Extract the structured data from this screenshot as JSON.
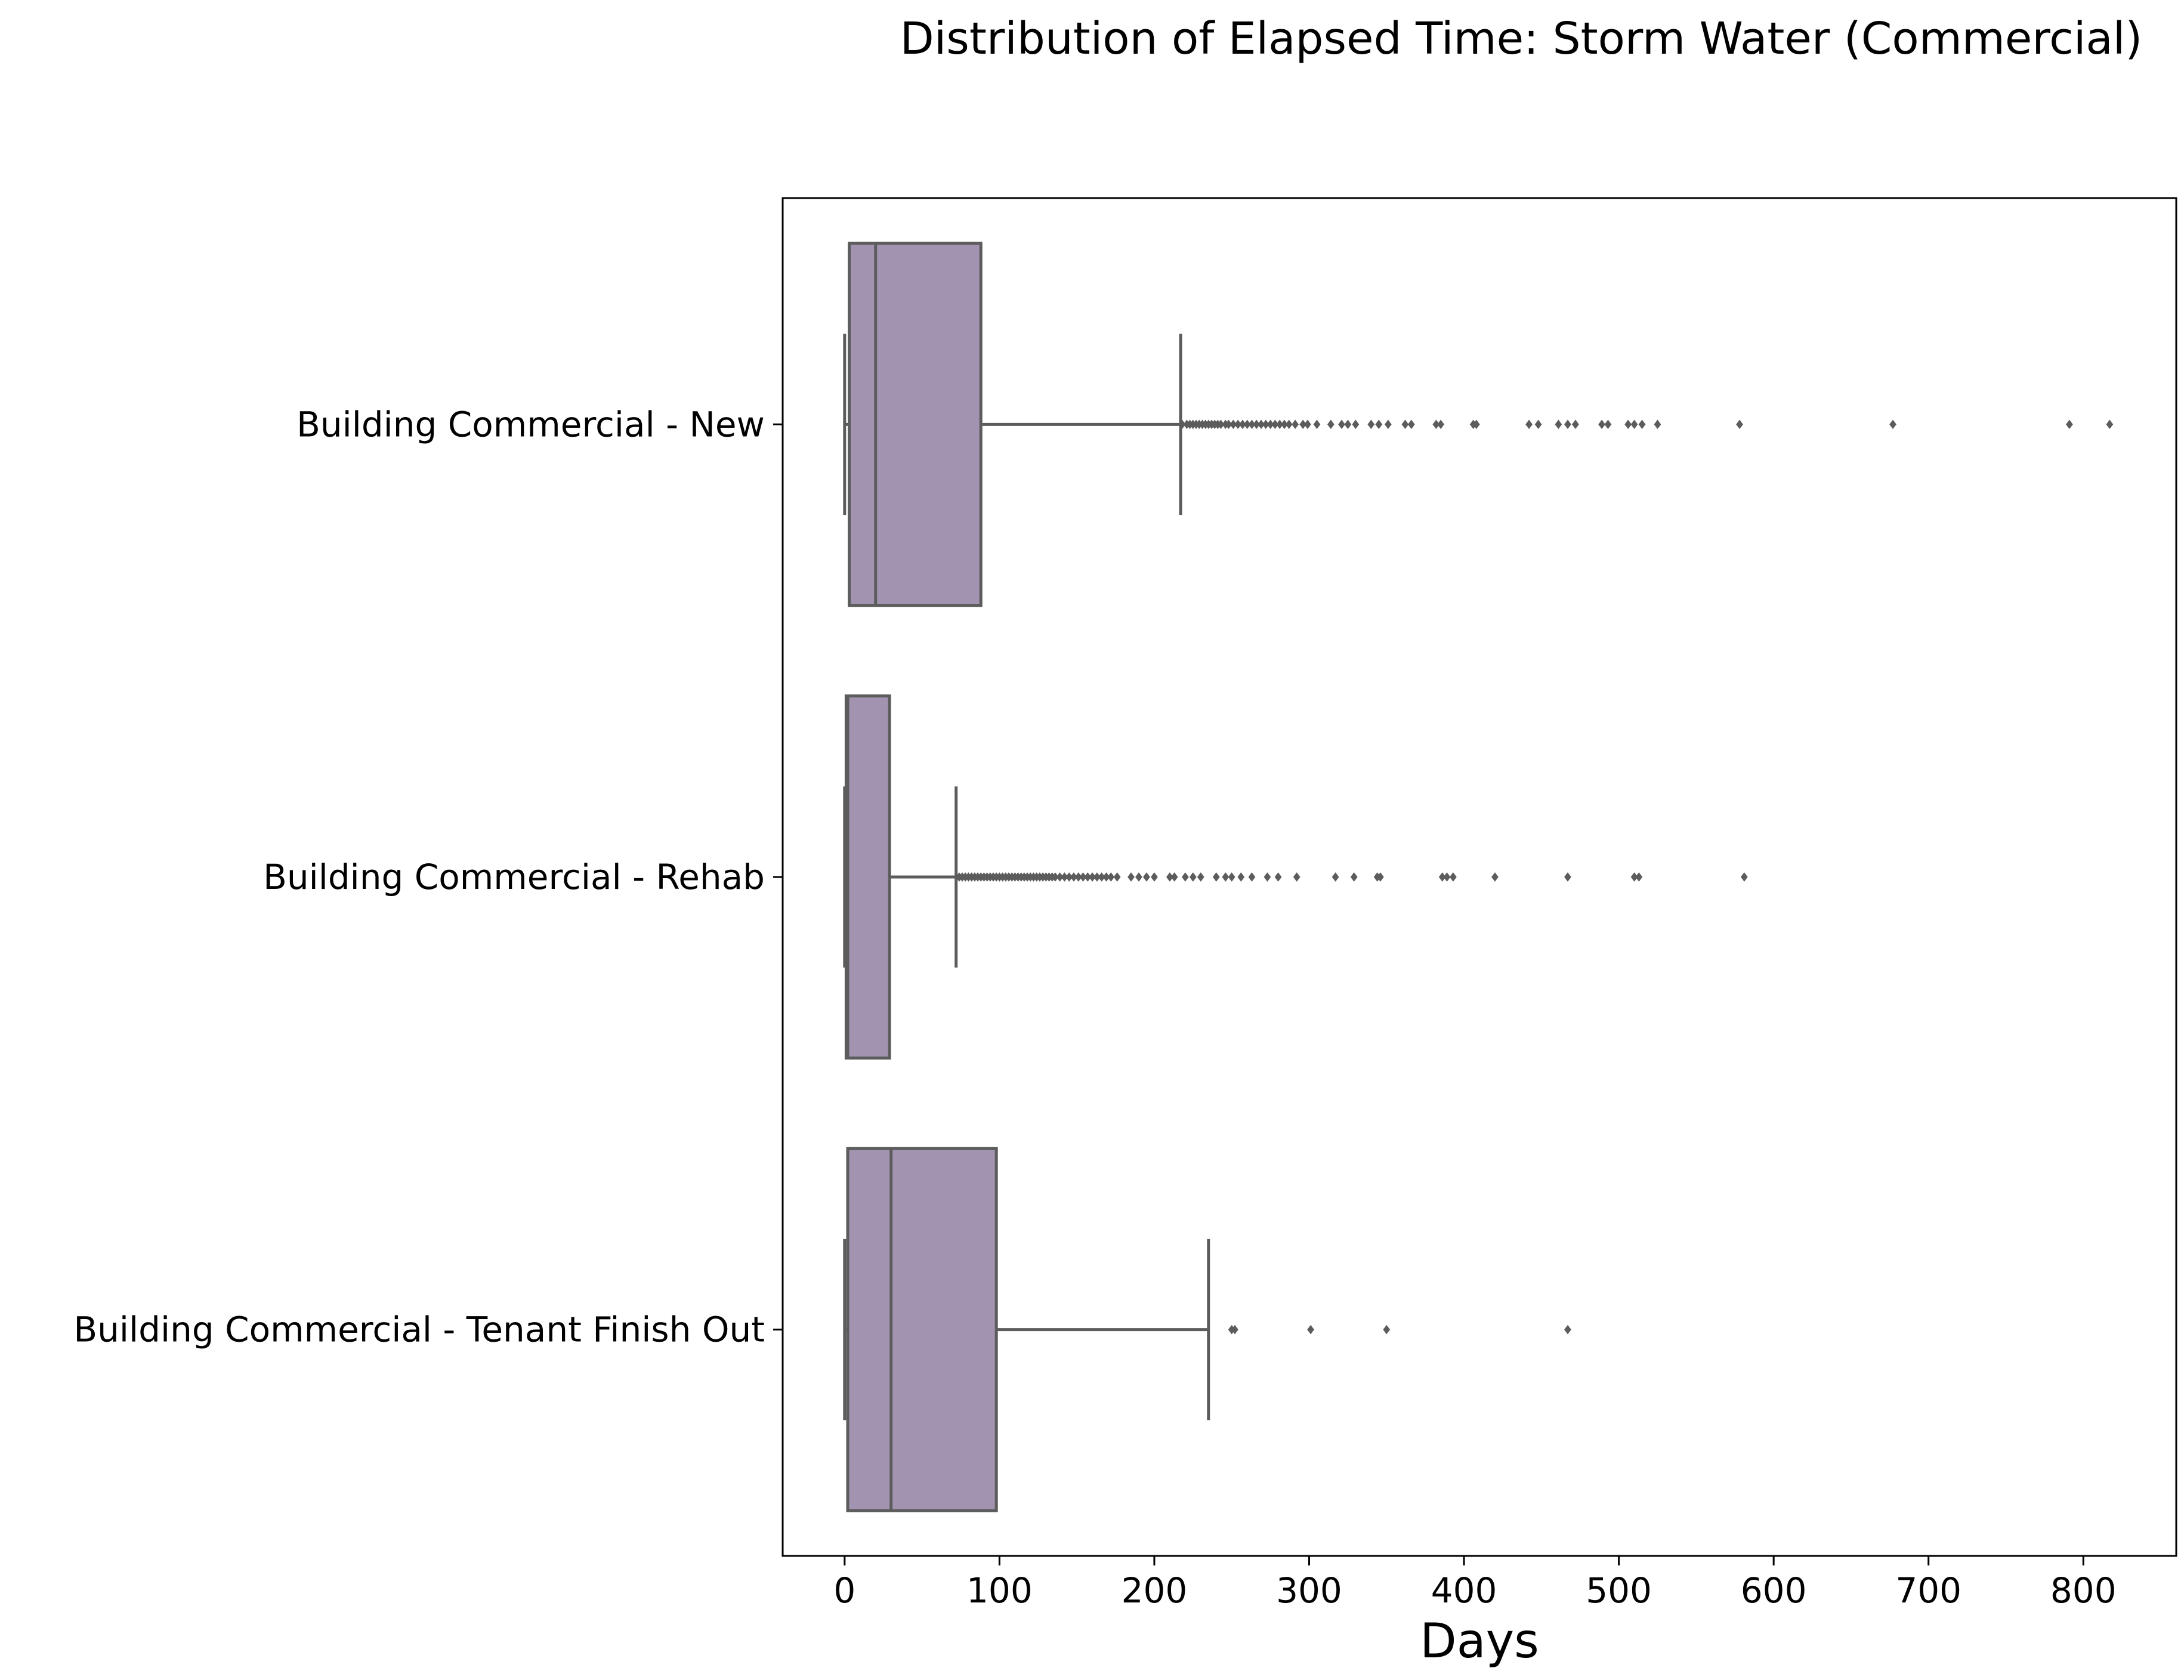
{
  "chart_data": {
    "type": "box",
    "orientation": "horizontal",
    "title": "Distribution of Elapsed Time: Storm Water (Commercial)",
    "xlabel": "Days",
    "ylabel": "",
    "xlim": [
      -40,
      860
    ],
    "xticks": [
      0,
      100,
      200,
      300,
      400,
      500,
      600,
      700,
      800
    ],
    "xtick_labels": [
      "0",
      "100",
      "200",
      "300",
      "400",
      "500",
      "600",
      "700",
      "800"
    ],
    "grid": false,
    "box_color": "#a294b0",
    "line_color": "#5c5c5c",
    "categories": [
      "Building Commercial - New",
      "Building Commercial - Rehab",
      "Building Commercial - Tenant Finish Out"
    ],
    "boxes": [
      {
        "label": "Building Commercial - New",
        "whisker_low": 0,
        "q1": 3,
        "median": 20,
        "q3": 88,
        "whisker_high": 217,
        "outliers": [
          218,
          221,
          223,
          225,
          227,
          229,
          231,
          233,
          235,
          237,
          239,
          241,
          243,
          246,
          248,
          251,
          254,
          257,
          260,
          263,
          266,
          269,
          272,
          275,
          278,
          281,
          284,
          287,
          291,
          296,
          299,
          305,
          314,
          321,
          325,
          330,
          340,
          345,
          351,
          362,
          366,
          382,
          385,
          406,
          408,
          442,
          448,
          461,
          467,
          472,
          489,
          493,
          506,
          510,
          515,
          525,
          578,
          677,
          791,
          817
        ]
      },
      {
        "label": "Building Commercial - Rehab",
        "whisker_low": 0,
        "q1": 1,
        "median": 2,
        "q3": 29,
        "whisker_high": 72,
        "outliers": [
          74,
          76,
          78,
          80,
          82,
          84,
          86,
          88,
          90,
          92,
          94,
          96,
          98,
          100,
          102,
          104,
          106,
          108,
          110,
          112,
          114,
          116,
          118,
          120,
          122,
          124,
          126,
          128,
          130,
          132,
          134,
          136,
          139,
          142,
          145,
          148,
          151,
          154,
          157,
          160,
          163,
          166,
          169,
          172,
          176,
          185,
          190,
          195,
          200,
          210,
          213,
          220,
          225,
          230,
          240,
          246,
          250,
          256,
          263,
          273,
          280,
          292,
          317,
          329,
          344,
          346,
          386,
          389,
          393,
          420,
          467,
          510,
          513,
          581
        ]
      },
      {
        "label": "Building Commercial - Tenant Finish Out",
        "whisker_low": 0,
        "q1": 2,
        "median": 30,
        "q3": 98,
        "whisker_high": 235,
        "outliers": [
          250,
          252,
          301,
          350,
          467
        ]
      }
    ]
  }
}
